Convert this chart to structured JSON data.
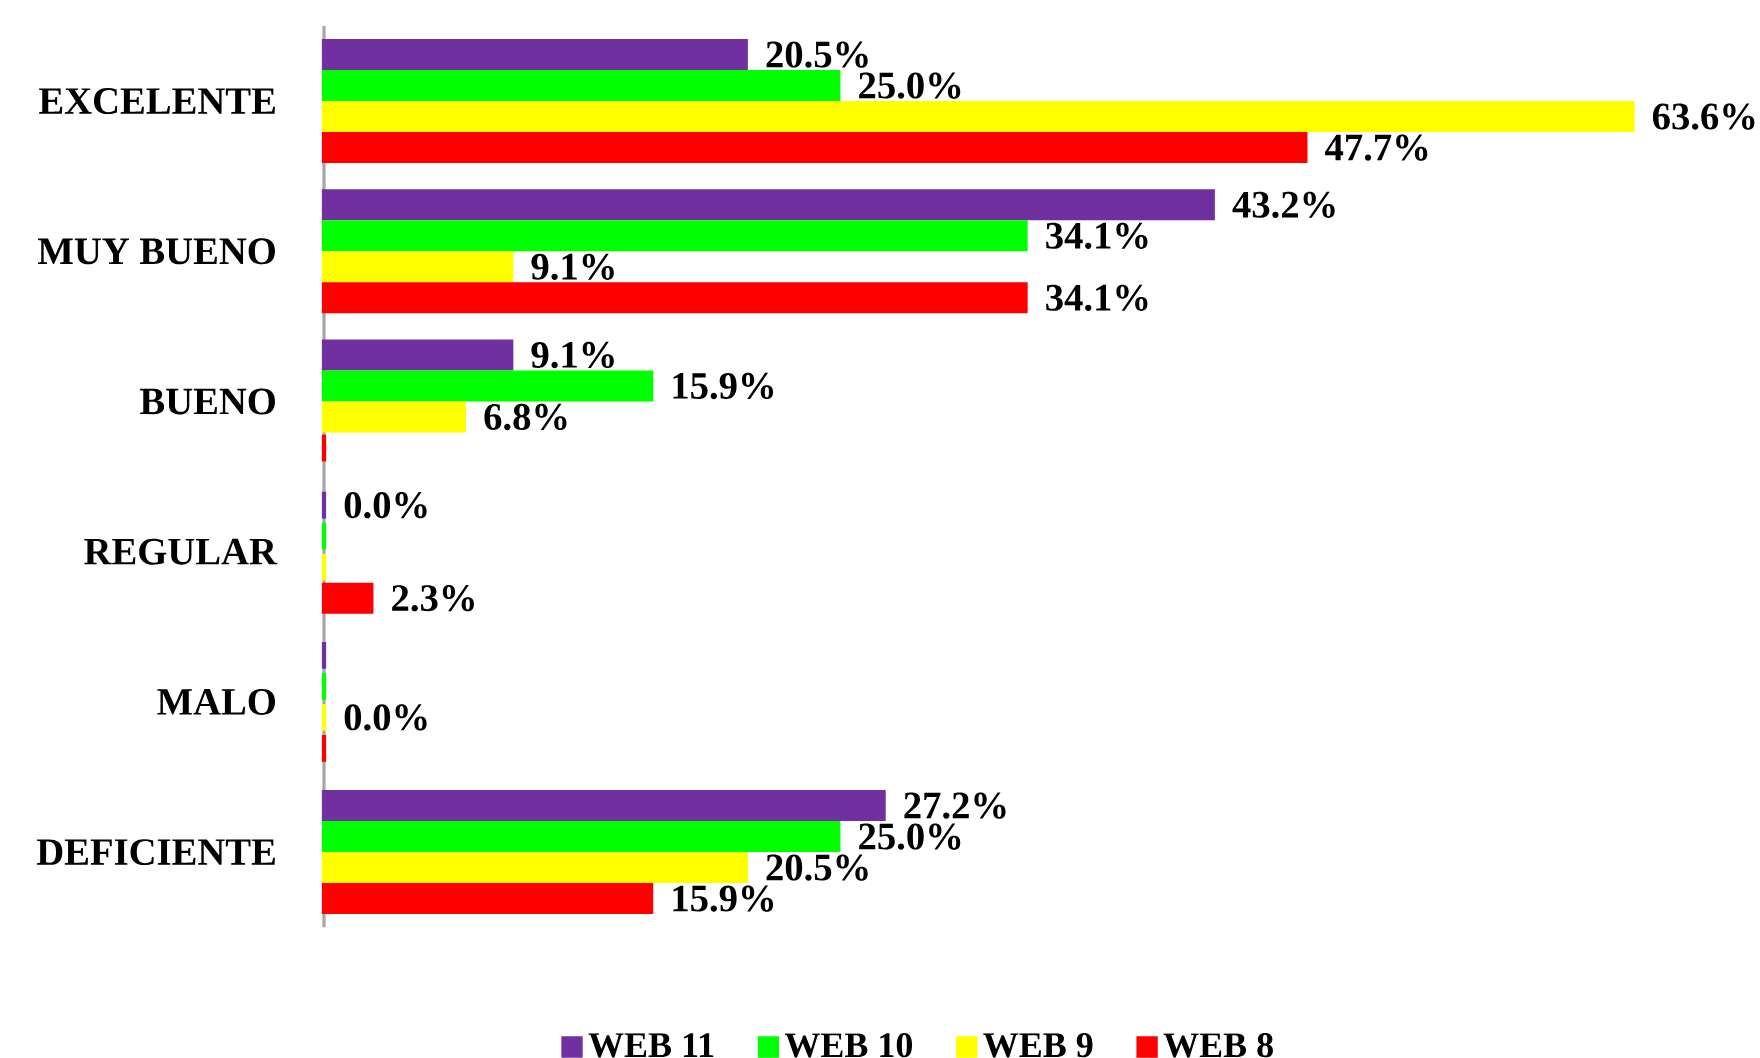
{
  "chart_data": {
    "type": "bar",
    "orientation": "horizontal",
    "categories": [
      "EXCELENTE",
      "MUY BUENO",
      "BUENO",
      "REGULAR",
      "MALO",
      "DEFICIENTE"
    ],
    "series": [
      {
        "name": "WEB 11",
        "color": "#7030a0",
        "values": [
          20.5,
          43.2,
          9.1,
          0.0,
          0.0,
          27.2
        ],
        "value_labels": [
          "20.5%",
          "43.2%",
          "9.1%",
          "0.0%",
          null,
          "27.2%"
        ]
      },
      {
        "name": "WEB 10",
        "color": "#00ff00",
        "values": [
          25.0,
          34.1,
          15.9,
          0.0,
          0.0,
          25.0
        ],
        "value_labels": [
          "25.0%",
          "34.1%",
          "15.9%",
          null,
          null,
          "25.0%"
        ]
      },
      {
        "name": "WEB 9",
        "color": "#ffff00",
        "values": [
          63.6,
          9.1,
          6.8,
          0.0,
          0.0,
          20.5
        ],
        "value_labels": [
          "63.6%",
          "9.1%",
          "6.8%",
          null,
          "0.0%",
          "20.5%"
        ]
      },
      {
        "name": "WEB 8",
        "color": "#ff0000",
        "values": [
          47.7,
          34.1,
          0.0,
          2.3,
          0.0,
          15.9
        ],
        "value_labels": [
          "47.7%",
          "34.1%",
          null,
          "2.3%",
          null,
          "15.9%"
        ]
      }
    ],
    "legend": "bottom"
  }
}
